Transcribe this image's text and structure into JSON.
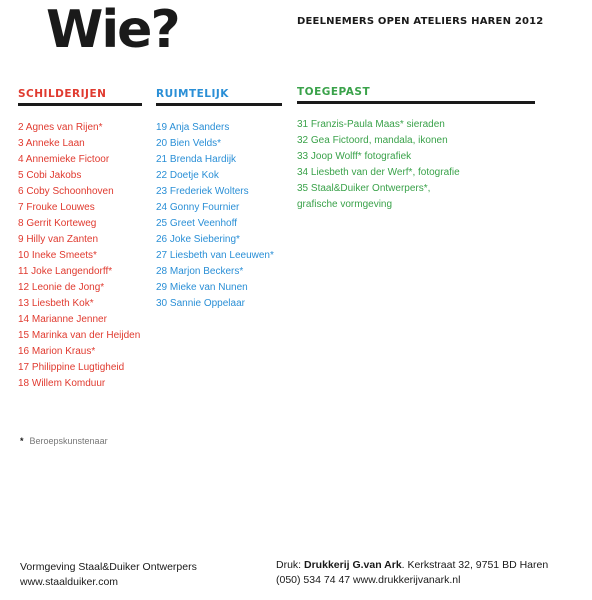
{
  "title": "Wie?",
  "subtitle": "DEELNEMERS OPEN ATELIERS HAREN 2012",
  "colors": {
    "schilderijen": "#e03a2f",
    "ruimtelijk": "#2a8fd6",
    "toegepast": "#3aa24a"
  },
  "columns": {
    "schilderijen": {
      "heading": "SCHILDERIJEN",
      "items": [
        "2 Agnes  van  Rijen*",
        "3 Anneke Laan",
        "4 Annemieke Fictoor",
        "5 Cobi Jakobs",
        "6 Coby Schoonhoven",
        "7 Frouke Louwes",
        "8 Gerrit Korteweg",
        "9 Hilly van Zanten",
        "10 Ineke Smeets*",
        "11 Joke Langendorff*",
        "12 Leonie de Jong*",
        "13 Liesbeth Kok*",
        "14 Marianne Jenner",
        "15 Marinka van der Heijden",
        "16 Marion Kraus*",
        "17 Philippine Lugtigheid",
        "18 Willem Komduur"
      ]
    },
    "ruimtelijk": {
      "heading": "RUIMTELIJK",
      "items": [
        "19 Anja Sanders",
        "20 Bien Velds*",
        "21 Brenda Hardijk",
        "22 Doetje Kok",
        "23 Frederiek Wolters",
        "24 Gonny Fournier",
        "25 Greet Veenhoff",
        "26 Joke Siebering*",
        "27 Liesbeth van Leeuwen*",
        "28 Marjon Beckers*",
        "29 Mieke van Nunen",
        "30 Sannie Oppelaar"
      ]
    },
    "toegepast": {
      "heading": "TOEGEPAST",
      "items": [
        "31 Franzis-Paula Maas* sieraden",
        "32 Gea Fictoord, mandala, ikonen",
        "33 Joop Wolff* fotografiek",
        "34 Liesbeth van der Werf*, fotografie",
        "35 Staal&Duiker Ontwerpers*,",
        "grafische vormgeving"
      ]
    }
  },
  "note": {
    "star": "*",
    "text": "Beroepskunstenaar"
  },
  "footer": {
    "left_line1": "Vormgeving Staal&Duiker Ontwerpers",
    "left_line2": "www.staalduiker.com",
    "right_prefix": "Druk: ",
    "right_bold": "Drukkerij G.van Ark",
    "right_rest": ". Kerkstraat 32, 9751 BD Haren",
    "right_line2": "(050) 534 74 47 www.drukkerijvanark.nl"
  }
}
